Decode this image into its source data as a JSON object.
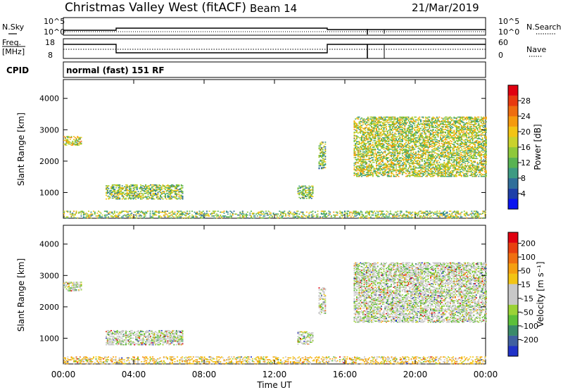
{
  "header": {
    "station": "Christmas Valley West (fitACF)",
    "beam": "Beam 14",
    "date": "21/Mar/2019"
  },
  "top_panel": {
    "left_label": "N.Sky",
    "right_label": "N.Search",
    "left_ticks": [
      "10^5",
      "10^0"
    ],
    "right_ticks": [
      "10^5",
      "10^0"
    ]
  },
  "freq_panel": {
    "left_label_1": "Freq.",
    "left_label_2": "[MHz]",
    "right_label": "Nave",
    "left_ticks": [
      "18",
      "8"
    ],
    "right_ticks": [
      "60",
      "0"
    ]
  },
  "cpid": {
    "label": "CPID",
    "mode": "normal (fast) 151 RF"
  },
  "chart_data": [
    {
      "type": "heatmap",
      "panel": "power",
      "ylabel": "Slant Range [km]",
      "ylim": [
        180,
        4600
      ],
      "yticks": [
        "4000",
        "3000",
        "2000",
        "1000"
      ],
      "yticks_values": [
        4000,
        3000,
        2000,
        1000
      ],
      "xlim_hours": [
        0,
        24
      ],
      "colorbar": {
        "label": "Power [dB]",
        "ticks": [
          "28",
          "24",
          "20",
          "16",
          "12",
          "8",
          "4"
        ],
        "range": [
          0,
          32
        ],
        "colors": [
          "#0a14f0",
          "#1e3fa8",
          "#2f6e9a",
          "#3d9a82",
          "#58b352",
          "#8ec83a",
          "#c9d22c",
          "#f2c414",
          "#f59a0e",
          "#ee6d10",
          "#e83a10",
          "#e00010"
        ]
      },
      "echo_regions": [
        {
          "t0": 0.0,
          "t1": 1.0,
          "r0": 2500,
          "r1": 2800,
          "level": 0.55
        },
        {
          "t0": 2.4,
          "t1": 6.8,
          "r0": 780,
          "r1": 1250,
          "level": 0.45
        },
        {
          "t0": 13.3,
          "t1": 14.2,
          "r0": 800,
          "r1": 1200,
          "level": 0.4
        },
        {
          "t0": 14.5,
          "t1": 14.9,
          "r0": 1750,
          "r1": 2600,
          "level": 0.4
        },
        {
          "t0": 16.5,
          "t1": 24.0,
          "r0": 1500,
          "r1": 3400,
          "level": 0.5
        },
        {
          "t0": 0.0,
          "t1": 24.0,
          "r0": 180,
          "r1": 420,
          "level": 0.45
        }
      ]
    },
    {
      "type": "heatmap",
      "panel": "velocity",
      "ylabel": "Slant Range [km]",
      "ylim": [
        180,
        4600
      ],
      "yticks": [
        "4000",
        "3000",
        "2000",
        "1000"
      ],
      "yticks_values": [
        4000,
        3000,
        2000,
        1000
      ],
      "xlim_hours": [
        0,
        24
      ],
      "xticks": [
        "00:00",
        "04:00",
        "08:00",
        "12:00",
        "16:00",
        "20:00",
        "00:00"
      ],
      "xticks_hours": [
        0,
        4,
        8,
        12,
        16,
        20,
        24
      ],
      "xlabel": "Time UT",
      "colorbar": {
        "label": "Velocity [m s⁻¹]",
        "ticks": [
          "200",
          "100",
          "50",
          "15",
          "-15",
          "-50",
          "-100",
          "-200"
        ],
        "colors": [
          "#2032c8",
          "#4060a0",
          "#3a8a6a",
          "#5cbf3a",
          "#9ad236",
          "#c8c8c8",
          "#c8c8c8",
          "#f2c414",
          "#f5a010",
          "#f07010",
          "#e84010",
          "#e00010"
        ]
      },
      "echo_regions": [
        {
          "t0": 0.0,
          "t1": 1.0,
          "r0": 2500,
          "r1": 2800,
          "level": 0.5
        },
        {
          "t0": 2.4,
          "t1": 6.8,
          "r0": 780,
          "r1": 1250,
          "level": 0.5
        },
        {
          "t0": 13.3,
          "t1": 14.2,
          "r0": 800,
          "r1": 1200,
          "level": 0.6
        },
        {
          "t0": 14.5,
          "t1": 14.9,
          "r0": 1750,
          "r1": 2600,
          "level": 0.5
        },
        {
          "t0": 16.5,
          "t1": 24.0,
          "r0": 1500,
          "r1": 3400,
          "level": 0.5
        },
        {
          "t0": 0.0,
          "t1": 24.0,
          "r0": 180,
          "r1": 420,
          "level": 0.65
        }
      ]
    }
  ]
}
